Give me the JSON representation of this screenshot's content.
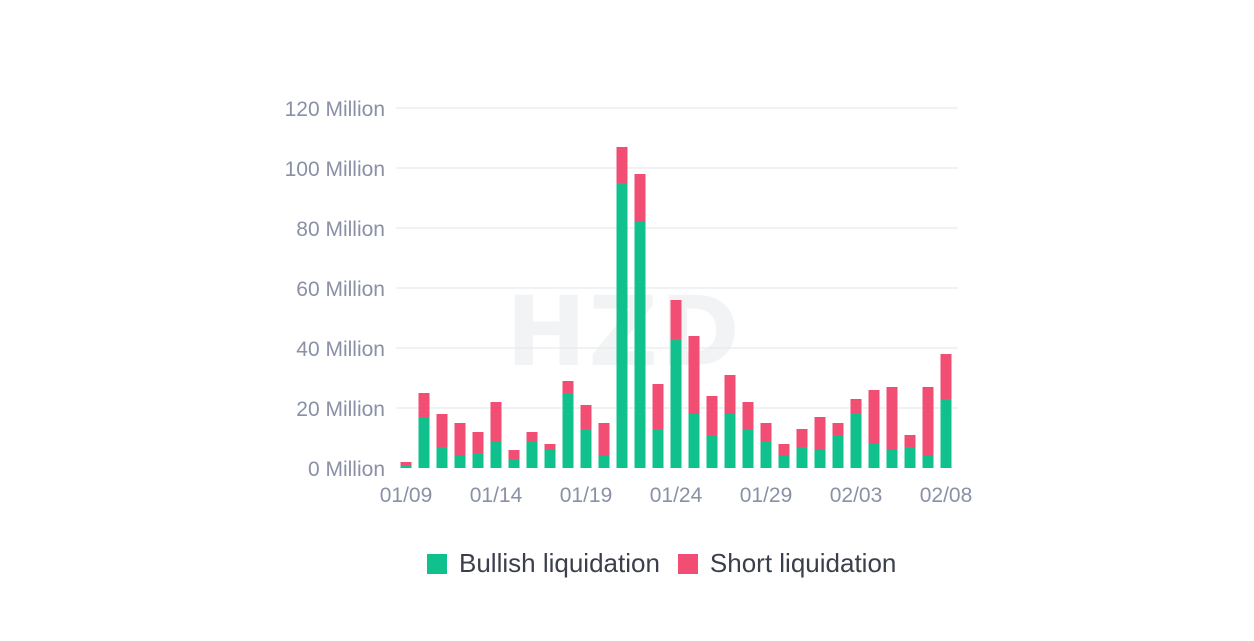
{
  "watermark": "HZD",
  "colors": {
    "bullish": "#10c18e",
    "short": "#f24e74",
    "axis_text": "#8a90a6",
    "grid": "#f1f2f4"
  },
  "legend": {
    "bullish_label": "Bullish liquidation",
    "short_label": "Short liquidation"
  },
  "chart_data": {
    "type": "bar",
    "stacked": true,
    "ylim": [
      0,
      120
    ],
    "yticks": [
      0,
      20,
      40,
      60,
      80,
      100,
      120
    ],
    "ytick_labels": [
      "0 Million",
      "20 Million",
      "40 Million",
      "60 Million",
      "80 Million",
      "100 Million",
      "120 Million"
    ],
    "xtick_labels": [
      {
        "index": 0,
        "label": "01/09"
      },
      {
        "index": 5,
        "label": "01/14"
      },
      {
        "index": 10,
        "label": "01/19"
      },
      {
        "index": 15,
        "label": "01/24"
      },
      {
        "index": 20,
        "label": "01/29"
      },
      {
        "index": 25,
        "label": "02/03"
      },
      {
        "index": 30,
        "label": "02/08"
      }
    ],
    "categories": [
      "01/09",
      "01/10",
      "01/11",
      "01/12",
      "01/13",
      "01/14",
      "01/15",
      "01/16",
      "01/17",
      "01/18",
      "01/19",
      "01/20",
      "01/21",
      "01/22",
      "01/23",
      "01/24",
      "01/25",
      "01/26",
      "01/27",
      "01/28",
      "01/29",
      "01/30",
      "01/31",
      "02/01",
      "02/02",
      "02/03",
      "02/04",
      "02/05",
      "02/06",
      "02/07",
      "02/08"
    ],
    "series": [
      {
        "name": "Bullish liquidation",
        "values": [
          1,
          17,
          7,
          4,
          5,
          9,
          3,
          9,
          6,
          25,
          13,
          4,
          95,
          82,
          13,
          43,
          18,
          11,
          18,
          13,
          9,
          4,
          7,
          6,
          11,
          18,
          8,
          6,
          7,
          4,
          23
        ]
      },
      {
        "name": "Short liquidation",
        "values": [
          1,
          8,
          11,
          11,
          7,
          13,
          3,
          3,
          2,
          4,
          8,
          11,
          12,
          16,
          15,
          13,
          26,
          13,
          13,
          9,
          6,
          4,
          6,
          11,
          4,
          5,
          18,
          21,
          4,
          23,
          15
        ]
      }
    ]
  }
}
